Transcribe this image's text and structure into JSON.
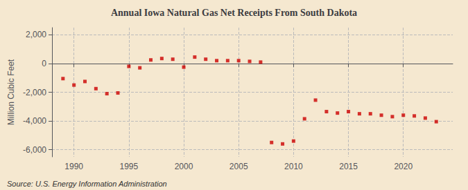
{
  "chart_data": {
    "type": "scatter",
    "title": "Annual Iowa Natural Gas Net Receipts From South Dakota",
    "ylabel": "Million Cubic Feet",
    "annotations": [
      "Source: U.S. Energy Information Administration"
    ],
    "x": [
      1989,
      1990,
      1991,
      1992,
      1993,
      1994,
      1995,
      1996,
      1997,
      1998,
      1999,
      2000,
      2001,
      2002,
      2003,
      2004,
      2005,
      2006,
      2007,
      2008,
      2009,
      2010,
      2011,
      2012,
      2013,
      2014,
      2015,
      2016,
      2017,
      2018,
      2019,
      2020,
      2021,
      2022,
      2023
    ],
    "values": [
      -1050,
      -1500,
      -1250,
      -1750,
      -2100,
      -2050,
      -200,
      -300,
      250,
      350,
      300,
      -250,
      450,
      300,
      200,
      200,
      200,
      150,
      100,
      -5500,
      -5600,
      -5400,
      -3850,
      -2550,
      -3350,
      -3450,
      -3350,
      -3500,
      -3500,
      -3600,
      -3700,
      -3600,
      -3650,
      -3800,
      -4050
    ],
    "color": "#cc0000",
    "marker": "square",
    "xlim": [
      1988.0,
      2024.5
    ],
    "xticks": [
      1990,
      1995,
      2000,
      2005,
      2010,
      2015,
      2020
    ],
    "ylim": [
      -6500,
      2500
    ],
    "yticks": [
      {
        "value": -6000,
        "label": "-6,000"
      },
      {
        "value": -4000,
        "label": "-4,000"
      },
      {
        "value": -2000,
        "label": "-2,000"
      },
      0,
      {
        "value": 2000,
        "label": "2,000"
      }
    ],
    "grid": true
  }
}
